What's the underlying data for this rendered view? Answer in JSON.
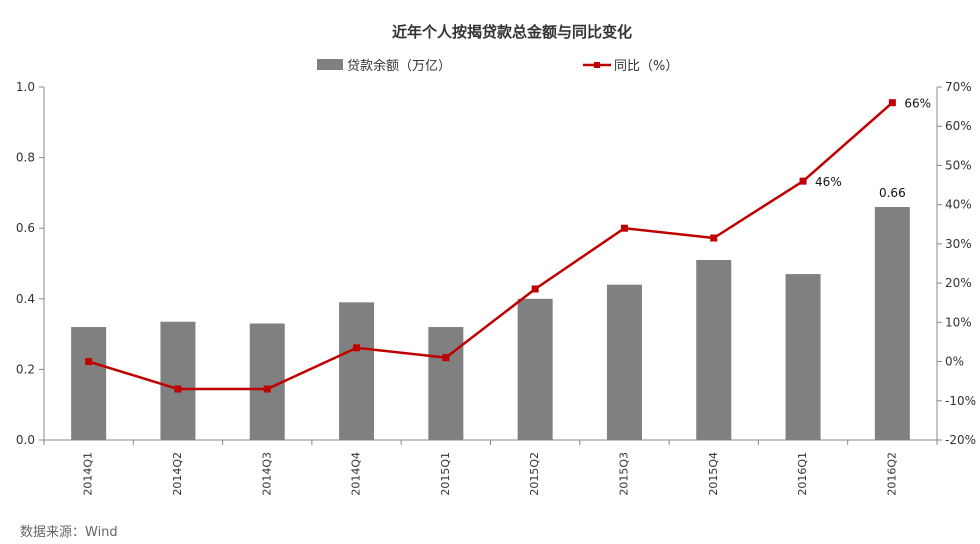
{
  "chart_data": {
    "type": "bar",
    "title": "近年个人按揭贷款总金额与同比变化",
    "categories": [
      "2014Q1",
      "2014Q2",
      "2014Q3",
      "2014Q4",
      "2015Q1",
      "2015Q2",
      "2015Q3",
      "2015Q4",
      "2016Q1",
      "2016Q2"
    ],
    "series": [
      {
        "name": "贷款余额（万亿）",
        "type": "bar",
        "axis": "left",
        "color": "#808080",
        "values": [
          0.32,
          0.335,
          0.33,
          0.39,
          0.32,
          0.4,
          0.44,
          0.51,
          0.47,
          0.66
        ]
      },
      {
        "name": "同比（%）",
        "type": "line",
        "axis": "right",
        "color": "#C00000",
        "values": [
          0,
          -7,
          -7,
          3.5,
          1,
          18.5,
          34,
          31.5,
          46,
          66
        ]
      }
    ],
    "data_labels": [
      {
        "series": 0,
        "index": 9,
        "text": "0.66"
      },
      {
        "series": 1,
        "index": 8,
        "text": "46%"
      },
      {
        "series": 1,
        "index": 9,
        "text": "66%"
      }
    ],
    "y_left": {
      "min": 0,
      "max": 1.0,
      "ticks": [
        "0.0",
        "0.2",
        "0.4",
        "0.6",
        "0.8",
        "1.0"
      ]
    },
    "y_right": {
      "min": -20,
      "max": 70,
      "ticks": [
        "-20%",
        "-10%",
        "0%",
        "10%",
        "20%",
        "30%",
        "40%",
        "50%",
        "60%",
        "70%"
      ]
    },
    "legend_position": "top",
    "grid": false,
    "source": "数据来源：Wind"
  }
}
